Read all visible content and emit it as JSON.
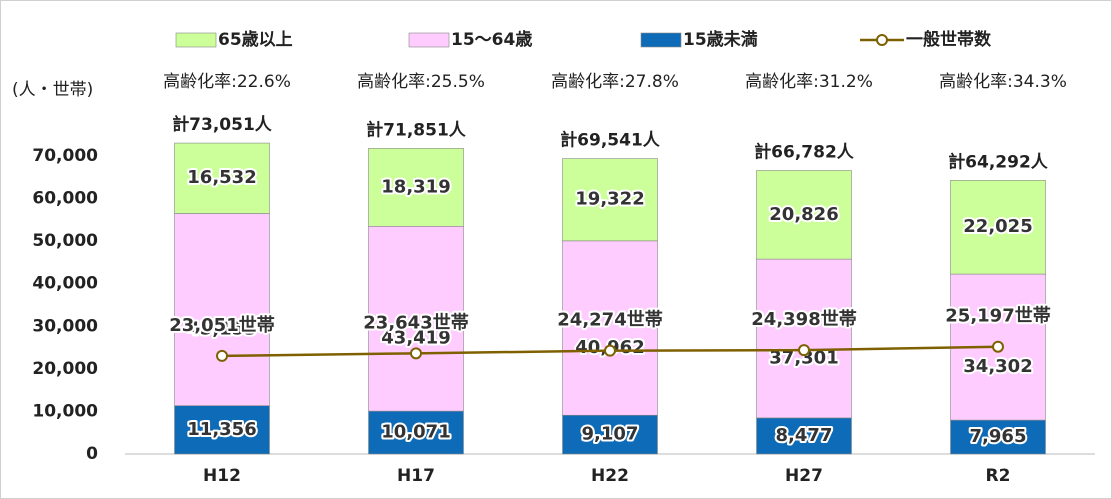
{
  "chart_data": {
    "type": "bar",
    "stacked": true,
    "y_axis_label": "(人・世帯)",
    "categories": [
      "H12",
      "H17",
      "H22",
      "H27",
      "R2"
    ],
    "series": [
      {
        "name": "15歳未満",
        "color": "#0e6bb8",
        "values": [
          11356,
          10071,
          9107,
          8477,
          7965
        ],
        "value_labels": [
          "11,356",
          "10,071",
          "9,107",
          "8,477",
          "7,965"
        ]
      },
      {
        "name": "15～64歳",
        "color": "#ffccff",
        "values": [
          45153,
          43419,
          40962,
          37301,
          34302
        ],
        "value_labels": [
          "45,153",
          "43,419",
          "40,962",
          "37,301",
          "34,302"
        ]
      },
      {
        "name": "65歳以上",
        "color": "#ccff99",
        "values": [
          16532,
          18319,
          19322,
          20826,
          22025
        ],
        "value_labels": [
          "16,532",
          "18,319",
          "19,322",
          "20,826",
          "22,025"
        ]
      },
      {
        "name": "一般世帯数",
        "type": "line",
        "color": "#7f6000",
        "values": [
          23051,
          23643,
          24274,
          24398,
          25197
        ],
        "value_labels": [
          "23,051世帯",
          "23,643世帯",
          "24,274世帯",
          "24,398世帯",
          "25,197世帯"
        ]
      }
    ],
    "total_labels": [
      "計73,051人",
      "計71,851人",
      "計69,541人",
      "計66,782人",
      "計64,292人"
    ],
    "aging_labels": [
      "高齢化率:22.6%",
      "高齢化率:25.5%",
      "高齢化率:27.8%",
      "高齢化率:31.2%",
      "高齢化率:34.3%"
    ],
    "ylim": [
      0,
      70000
    ],
    "yticks": [
      0,
      {
        "value": 10000,
        "label": "10,000"
      },
      {
        "value": 20000,
        "label": "20,000"
      },
      {
        "value": 30000,
        "label": "30,000"
      },
      {
        "value": 40000,
        "label": "40,000"
      },
      {
        "value": 50000,
        "label": "50,000"
      },
      {
        "value": 60000,
        "label": "60,000"
      },
      {
        "value": 70000,
        "label": "70,000"
      }
    ]
  }
}
